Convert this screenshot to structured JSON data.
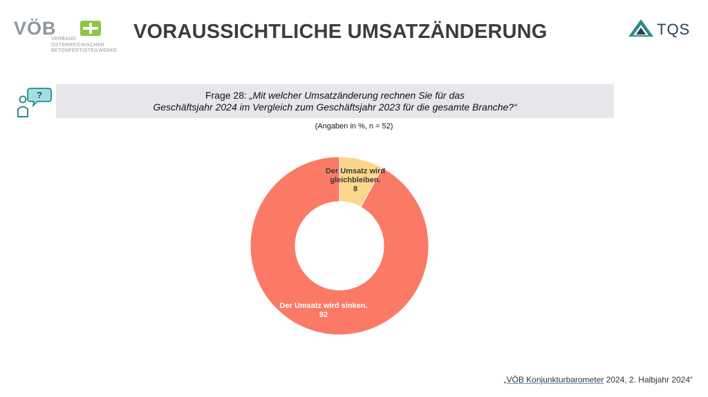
{
  "header": {
    "title": "VORAUSSICHTLICHE UMSATZÄNDERUNG",
    "logo_left": {
      "text": "VÖB",
      "sub_line1": "VERBAND ÖSTERREICHISCHER",
      "sub_line2": "BETONFERTIGTEILWERKE",
      "color": "#8f969c",
      "accent": "#8cc63f"
    },
    "logo_right": {
      "text": "TQS",
      "color": "#2a8b8c"
    }
  },
  "question": {
    "prefix": "Frage 28: ",
    "line1": "„Mit welcher Umsatzänderung rechnen Sie für das",
    "line2": "Geschäftsjahr 2024 im Vergleich zum Geschäftsjahr 2023 für die gesamte Branche?“",
    "icon": "person-question-icon"
  },
  "note": "(Angaben in %, n = 52)",
  "chart_data": {
    "type": "pie",
    "donut": true,
    "categories": [
      "Der Umsatz wird gleichbleiben.",
      "Der Umsatz wird sinken."
    ],
    "values": [
      8,
      92
    ],
    "colors": [
      "#fcd68a",
      "#fb7a66"
    ],
    "labels": [
      {
        "lines": [
          "Der Umsatz wird",
          "gleichbleiben."
        ],
        "value": "8"
      },
      {
        "lines": [
          "Der Umsatz wird sinken."
        ],
        "value": "92"
      }
    ]
  },
  "footer": {
    "link_text": "„VÖB Konjunkturbarometer",
    "rest_text": " 2024, 2. Halbjahr 2024“"
  }
}
